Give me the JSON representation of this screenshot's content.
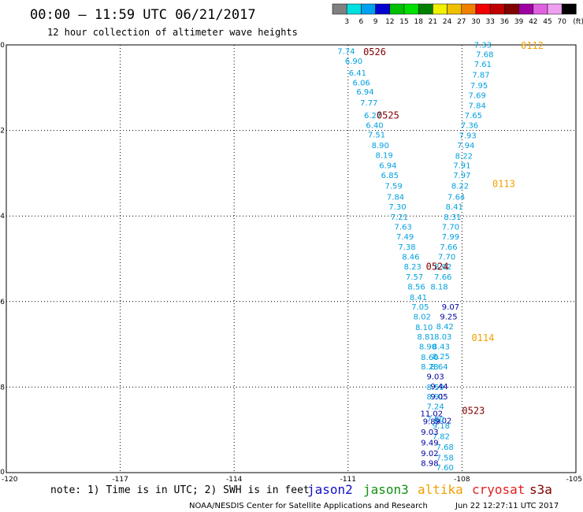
{
  "title": "00:00 – 11:59 UTC 06/21/2017",
  "subtitle": "12 hour collection of altimeter wave heights",
  "note": "note: 1) Time is in UTC; 2) SWH is in feet",
  "footer_center": "NOAA/NESDIS Center for Satellite Applications and Research",
  "footer_right": "Jun 22 12:27:11 UTC 2017",
  "satellites": [
    {
      "name": "jason2",
      "color": "#1010c8"
    },
    {
      "name": "jason3",
      "color": "#109010"
    },
    {
      "name": "altika",
      "color": "#f0a000"
    },
    {
      "name": "cryosat",
      "color": "#e02020"
    },
    {
      "name": "s3a",
      "color": "#800000"
    }
  ],
  "color_scale": {
    "labels": [
      "3",
      "6",
      "9",
      "12",
      "15",
      "18",
      "21",
      "24",
      "27",
      "30",
      "33",
      "36",
      "39",
      "42",
      "45",
      "70"
    ],
    "unit": "(ft)",
    "colors": [
      "#808080",
      "#00e0e0",
      "#00a0f0",
      "#0000d0",
      "#00c000",
      "#00e000",
      "#008000",
      "#f0f000",
      "#f0c000",
      "#f08000",
      "#f00000",
      "#c00000",
      "#800000",
      "#a000a0",
      "#e060e0",
      "#f0a0f0",
      "#000000"
    ]
  },
  "chart_data": {
    "type": "scatter",
    "xlim": [
      -120,
      -105
    ],
    "ylim": [
      -10,
      0
    ],
    "x_ticks": [
      -120,
      -117,
      -114,
      -111,
      -108,
      -105
    ],
    "y_ticks": [
      0,
      -2,
      -4,
      -6,
      -8,
      -10
    ],
    "grid": true,
    "series": [
      {
        "name": "s3a",
        "color": "#00a0e0",
        "points": [
          {
            "x": -111.05,
            "y": -0.15,
            "v": "7.74"
          },
          {
            "x": -110.85,
            "y": -0.38,
            "v": "6.90"
          },
          {
            "x": -110.75,
            "y": -0.65,
            "v": "6.41"
          },
          {
            "x": -110.65,
            "y": -0.88,
            "v": "6.06"
          },
          {
            "x": -110.55,
            "y": -1.1,
            "v": "6.94"
          },
          {
            "x": -110.45,
            "y": -1.35,
            "v": "7.77"
          },
          {
            "x": -110.35,
            "y": -1.65,
            "v": "6.27"
          },
          {
            "x": -110.3,
            "y": -1.88,
            "v": "6.40"
          },
          {
            "x": -110.25,
            "y": -2.1,
            "v": "7.51"
          },
          {
            "x": -110.15,
            "y": -2.35,
            "v": "8.90"
          },
          {
            "x": -110.05,
            "y": -2.58,
            "v": "8.19"
          },
          {
            "x": -109.95,
            "y": -2.82,
            "v": "6.94"
          },
          {
            "x": -109.9,
            "y": -3.05,
            "v": "6.85"
          },
          {
            "x": -109.8,
            "y": -3.3,
            "v": "7.59"
          },
          {
            "x": -109.75,
            "y": -3.55,
            "v": "7.84"
          },
          {
            "x": -109.7,
            "y": -3.78,
            "v": "7.30"
          },
          {
            "x": -109.65,
            "y": -4.02,
            "v": "7.21"
          },
          {
            "x": -109.55,
            "y": -4.25,
            "v": "7.63"
          },
          {
            "x": -109.5,
            "y": -4.48,
            "v": "7.49"
          },
          {
            "x": -109.45,
            "y": -4.72,
            "v": "7.38"
          },
          {
            "x": -109.35,
            "y": -4.95,
            "v": "8.46"
          },
          {
            "x": -109.3,
            "y": -5.18,
            "v": "8.23"
          },
          {
            "x": -109.25,
            "y": -5.42,
            "v": "7.57"
          },
          {
            "x": -109.2,
            "y": -5.65,
            "v": "8.56"
          },
          {
            "x": -109.15,
            "y": -5.9,
            "v": "8.41"
          },
          {
            "x": -109.1,
            "y": -6.12,
            "v": "7.05"
          },
          {
            "x": -109.05,
            "y": -6.35,
            "v": "8.02"
          },
          {
            "x": -109.0,
            "y": -6.6,
            "v": "8.10"
          },
          {
            "x": -108.95,
            "y": -6.82,
            "v": "8.81"
          },
          {
            "x": -108.9,
            "y": -7.05,
            "v": "8.90"
          },
          {
            "x": -108.85,
            "y": -7.3,
            "v": "8.60"
          },
          {
            "x": -108.85,
            "y": -7.52,
            "v": "8.28"
          },
          {
            "x": -108.7,
            "y": -8.0,
            "v": "8.59"
          },
          {
            "x": -108.7,
            "y": -8.22,
            "v": "8.91"
          },
          {
            "x": -108.7,
            "y": -8.45,
            "v": "7.24"
          },
          {
            "x": -108.55,
            "y": -8.9,
            "v": "9.18"
          },
          {
            "x": -108.55,
            "y": -9.15,
            "v": "7.82"
          },
          {
            "x": -108.45,
            "y": -9.4,
            "v": "7.68"
          },
          {
            "x": -108.45,
            "y": -9.65,
            "v": "7.58"
          },
          {
            "x": -108.45,
            "y": -9.88,
            "v": "7.60"
          }
        ]
      },
      {
        "name": "s3a",
        "color": "#0000a0",
        "points": [
          {
            "x": -108.3,
            "y": -6.12,
            "v": "9.07"
          },
          {
            "x": -108.35,
            "y": -6.35,
            "v": "9.25"
          },
          {
            "x": -108.7,
            "y": -7.75,
            "v": "9.03"
          },
          {
            "x": -108.6,
            "y": -7.98,
            "v": "9.44"
          },
          {
            "x": -108.6,
            "y": -8.22,
            "v": "9.05"
          },
          {
            "x": -108.8,
            "y": -8.62,
            "v": "11.02"
          },
          {
            "x": -108.5,
            "y": -8.78,
            "v": "9.02"
          },
          {
            "x": -108.8,
            "y": -8.8,
            "v": "9.89"
          },
          {
            "x": -108.85,
            "y": -9.05,
            "v": "9.03"
          },
          {
            "x": -108.85,
            "y": -9.3,
            "v": "9.49"
          },
          {
            "x": -108.85,
            "y": -9.55,
            "v": "9.02"
          },
          {
            "x": -108.85,
            "y": -9.78,
            "v": "8.98"
          }
        ]
      },
      {
        "name": "altika",
        "color": "#00a0e0",
        "points": [
          {
            "x": -107.45,
            "y": 0.0,
            "v": "7.33"
          },
          {
            "x": -107.4,
            "y": -0.22,
            "v": "7.68"
          },
          {
            "x": -107.45,
            "y": -0.45,
            "v": "7.61"
          },
          {
            "x": -107.5,
            "y": -0.7,
            "v": "7.87"
          },
          {
            "x": -107.55,
            "y": -0.95,
            "v": "7.95"
          },
          {
            "x": -107.6,
            "y": -1.18,
            "v": "7.69"
          },
          {
            "x": -107.6,
            "y": -1.42,
            "v": "7.84"
          },
          {
            "x": -107.7,
            "y": -1.65,
            "v": "7.65"
          },
          {
            "x": -107.8,
            "y": -1.88,
            "v": "7.36"
          },
          {
            "x": -107.85,
            "y": -2.12,
            "v": "7.93"
          },
          {
            "x": -107.9,
            "y": -2.35,
            "v": "7.94"
          },
          {
            "x": -107.95,
            "y": -2.6,
            "v": "8.22"
          },
          {
            "x": -108.0,
            "y": -2.82,
            "v": "7.91"
          },
          {
            "x": -108.0,
            "y": -3.05,
            "v": "7.97"
          },
          {
            "x": -108.05,
            "y": -3.3,
            "v": "8.22"
          },
          {
            "x": -108.15,
            "y": -3.55,
            "v": "7.64"
          },
          {
            "x": -108.2,
            "y": -3.78,
            "v": "8.41"
          },
          {
            "x": -108.25,
            "y": -4.02,
            "v": "8.31"
          },
          {
            "x": -108.3,
            "y": -4.25,
            "v": "7.70"
          },
          {
            "x": -108.3,
            "y": -4.48,
            "v": "7.99"
          },
          {
            "x": -108.35,
            "y": -4.72,
            "v": "7.66"
          },
          {
            "x": -108.4,
            "y": -4.95,
            "v": "7.70"
          },
          {
            "x": -108.5,
            "y": -5.18,
            "v": "8.02"
          },
          {
            "x": -108.5,
            "y": -5.42,
            "v": "7.66"
          },
          {
            "x": -108.6,
            "y": -5.65,
            "v": "8.18"
          },
          {
            "x": -108.45,
            "y": -6.58,
            "v": "8.42"
          },
          {
            "x": -108.5,
            "y": -6.82,
            "v": "8.03"
          },
          {
            "x": -108.55,
            "y": -7.05,
            "v": "8.43"
          },
          {
            "x": -108.55,
            "y": -7.28,
            "v": "8.25"
          },
          {
            "x": -108.6,
            "y": -7.52,
            "v": "8.64"
          },
          {
            "x": -108.7,
            "y": -8.75,
            "v": "7.80"
          }
        ]
      }
    ],
    "annotations": [
      {
        "text": "0526",
        "x": -110.3,
        "y": -0.17,
        "color": "#800000"
      },
      {
        "text": "0525",
        "x": -109.95,
        "y": -1.65,
        "color": "#800000"
      },
      {
        "text": "0524",
        "x": -108.65,
        "y": -5.18,
        "color": "#800000"
      },
      {
        "text": "0523",
        "x": -107.7,
        "y": -8.55,
        "color": "#800000"
      },
      {
        "text": "0112",
        "x": -106.15,
        "y": -0.02,
        "color": "#f0a000"
      },
      {
        "text": "0113",
        "x": -106.9,
        "y": -3.25,
        "color": "#f0a000"
      },
      {
        "text": "0114",
        "x": -107.45,
        "y": -6.85,
        "color": "#f0a000"
      }
    ]
  }
}
